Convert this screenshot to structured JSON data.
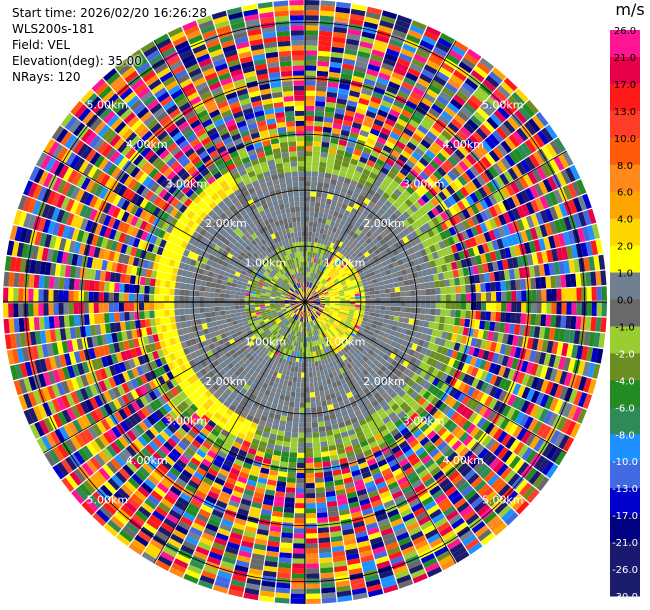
{
  "header": {
    "start_time": "Start time: 2026/02/20 16:26:28",
    "instrument": "WLS200s-181",
    "field": "Field: VEL",
    "elevation": "Elevation(deg): 35.00",
    "nrays": "NRays: 120"
  },
  "colorbar": {
    "unit": "m/s",
    "ticks": [
      "26.0",
      "21.0",
      "17.0",
      "13.0",
      "10.0",
      "8.0",
      "6.0",
      "4.0",
      "2.0",
      "1.0",
      "0.0",
      "-1.0",
      "-2.0",
      "-4.0",
      "-6.0",
      "-8.0",
      "-10.0",
      "-13.0",
      "-17.0",
      "-21.0",
      "-26.0",
      "-30.0"
    ],
    "colors": [
      "#ff1493",
      "#e8004a",
      "#ff1a1a",
      "#ff3c28",
      "#ff5a0a",
      "#ff8a1a",
      "#ffa500",
      "#ffd700",
      "#ffff00",
      "#708090",
      "#696969",
      "#9acd32",
      "#6b8e23",
      "#228b22",
      "#2e8b57",
      "#1e90ff",
      "#4169e1",
      "#0000cd",
      "#000080",
      "#191970",
      "#1c1c6c"
    ]
  },
  "chart_data": {
    "type": "ppi",
    "field": "VEL",
    "units": "m/s",
    "elevation_deg": 35.0,
    "n_rays": 120,
    "range_rings_km": [
      1.0,
      2.0,
      3.0,
      4.0,
      5.0
    ],
    "ring_labels": [
      "1.00km",
      "2.00km",
      "3.00km",
      "4.00km",
      "5.00km"
    ],
    "max_range_km": 5.4,
    "description_values": {
      "near_field_velocity_mps": [
        -2.0,
        4.0
      ],
      "mid_field_velocity_mps": [
        -1.0,
        1.0
      ],
      "far_field": "noise, full colour range"
    }
  }
}
